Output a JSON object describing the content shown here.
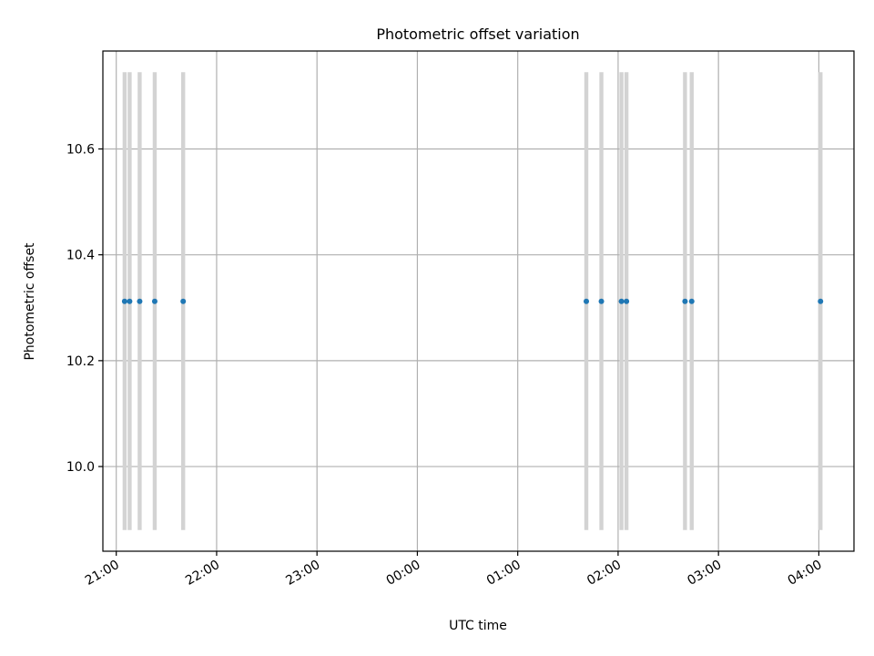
{
  "chart_data": {
    "type": "scatter",
    "title": "Photometric offset variation",
    "xlabel": "UTC time",
    "ylabel": "Photometric offset",
    "x_type": "time",
    "x_ticks": [
      "21:00",
      "22:00",
      "23:00",
      "00:00",
      "01:00",
      "02:00",
      "03:00",
      "04:00"
    ],
    "y_ticks": [
      "10.0",
      "10.2",
      "10.4",
      "10.6"
    ],
    "xlim": [
      "20:52",
      "04:21"
    ],
    "ylim": [
      9.84,
      10.785
    ],
    "grid": true,
    "point_color": "#1f77b4",
    "band_color": "#d3d3d3",
    "error_band": {
      "lower": 9.88,
      "upper": 10.745
    },
    "points": [
      {
        "x": "21:05",
        "y": 10.312
      },
      {
        "x": "21:08",
        "y": 10.312
      },
      {
        "x": "21:14",
        "y": 10.312
      },
      {
        "x": "21:23",
        "y": 10.312
      },
      {
        "x": "21:40",
        "y": 10.312
      },
      {
        "x": "01:41",
        "y": 10.312
      },
      {
        "x": "01:50",
        "y": 10.312
      },
      {
        "x": "02:02",
        "y": 10.312
      },
      {
        "x": "02:05",
        "y": 10.312
      },
      {
        "x": "02:40",
        "y": 10.312
      },
      {
        "x": "02:44",
        "y": 10.312
      },
      {
        "x": "04:01",
        "y": 10.312
      }
    ]
  }
}
